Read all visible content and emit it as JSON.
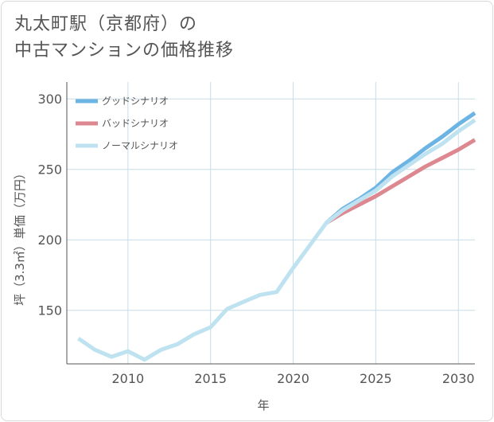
{
  "title": {
    "line1": "丸太町駅（京都府）の",
    "line2": "中古マンションの価格推移"
  },
  "chart_data": {
    "type": "line",
    "title": "丸太町駅（京都府）の中古マンションの価格推移",
    "xlabel": "年",
    "ylabel": "坪（3.3㎡）単価（万円）",
    "xlim": [
      2006.3,
      2031
    ],
    "ylim": [
      112,
      312
    ],
    "xticks": [
      2010,
      2015,
      2020,
      2025,
      2030
    ],
    "yticks": [
      150,
      200,
      250,
      300
    ],
    "grid": true,
    "legend_position": "top-left",
    "series": [
      {
        "name": "グッドシナリオ",
        "color": "#6cb4e4",
        "x": [
          2022,
          2023,
          2024,
          2025,
          2026,
          2027,
          2028,
          2029,
          2030,
          2031
        ],
        "y": [
          212,
          222,
          229,
          237,
          248,
          256,
          265,
          273,
          282,
          290
        ]
      },
      {
        "name": "バッドシナリオ",
        "color": "#dd8890",
        "x": [
          2022,
          2023,
          2024,
          2025,
          2026,
          2027,
          2028,
          2029,
          2030,
          2031
        ],
        "y": [
          212,
          219,
          225,
          231,
          238,
          245,
          252,
          258,
          264,
          271
        ]
      },
      {
        "name": "ノーマルシナリオ",
        "color": "#bfe2f0",
        "x": [
          2007,
          2008,
          2009,
          2010,
          2011,
          2012,
          2013,
          2014,
          2015,
          2016,
          2017,
          2018,
          2019,
          2020,
          2021,
          2022,
          2023,
          2024,
          2025,
          2026,
          2027,
          2028,
          2029,
          2030,
          2031
        ],
        "y": [
          130,
          122,
          117,
          121,
          115,
          122,
          126,
          133,
          138,
          151,
          156,
          161,
          163,
          180,
          196,
          212,
          221,
          228,
          235,
          245,
          253,
          261,
          268,
          277,
          285
        ]
      }
    ]
  }
}
